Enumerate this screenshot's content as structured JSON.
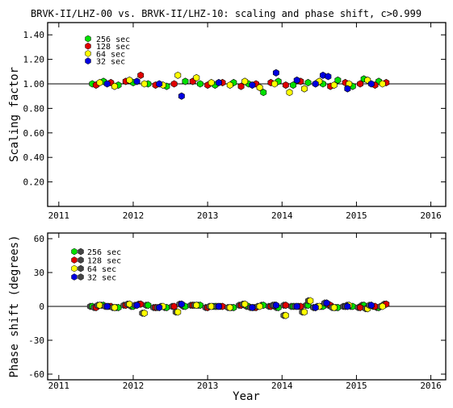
{
  "chart_data": [
    {
      "type": "scatter",
      "title": "BRVK-II/LHZ-00 vs. BRVK-II/LHZ-10: scaling and phase shift, c>0.999",
      "xlabel": "",
      "ylabel": "Scaling factor",
      "xlim": [
        2010.85,
        2016.2
      ],
      "ylim": [
        0.0,
        1.5
      ],
      "x_ticks": [
        "2011",
        "2012",
        "2013",
        "2014",
        "2015",
        "2016"
      ],
      "y_ticks": [
        "0.20",
        "0.40",
        "0.60",
        "0.80",
        "1.00",
        "1.20",
        "1.40"
      ],
      "reference_line": 1.0,
      "legend_position": "top-left",
      "series": [
        {
          "name": "256 sec",
          "color": "#00e000",
          "x": [
            2011.45,
            2011.6,
            2011.8,
            2012.0,
            2012.2,
            2012.45,
            2012.7,
            2012.9,
            2013.1,
            2013.35,
            2013.55,
            2013.75,
            2013.95,
            2014.15,
            2014.35,
            2014.55,
            2014.75,
            2014.95,
            2015.1,
            2015.3
          ],
          "y": [
            1.0,
            1.02,
            0.99,
            1.01,
            1.0,
            0.98,
            1.02,
            1.0,
            0.99,
            1.01,
            1.0,
            0.93,
            1.02,
            0.99,
            1.01,
            1.0,
            1.03,
            0.98,
            1.04,
            1.02
          ]
        },
        {
          "name": "128 sec",
          "color": "#e00000",
          "x": [
            2011.5,
            2011.7,
            2011.9,
            2012.1,
            2012.3,
            2012.55,
            2012.8,
            2013.0,
            2013.2,
            2013.45,
            2013.65,
            2013.85,
            2014.05,
            2014.25,
            2014.45,
            2014.65,
            2014.85,
            2015.05,
            2015.25,
            2015.4
          ],
          "y": [
            0.99,
            1.01,
            1.02,
            1.07,
            0.99,
            1.0,
            1.02,
            0.99,
            1.01,
            0.98,
            1.0,
            1.01,
            0.99,
            1.02,
            1.0,
            0.98,
            1.01,
            1.0,
            0.99,
            1.01
          ]
        },
        {
          "name": "64 sec",
          "color": "#ffff00",
          "x": [
            2011.55,
            2011.75,
            2011.95,
            2012.15,
            2012.4,
            2012.6,
            2012.85,
            2013.05,
            2013.3,
            2013.5,
            2013.7,
            2013.9,
            2014.1,
            2014.3,
            2014.5,
            2014.7,
            2014.9,
            2015.15,
            2015.35
          ],
          "y": [
            1.01,
            0.98,
            1.03,
            1.0,
            0.99,
            1.07,
            1.05,
            1.01,
            0.99,
            1.02,
            0.97,
            1.0,
            0.93,
            0.96,
            1.02,
            0.99,
            1.0,
            1.03,
            1.0
          ]
        },
        {
          "name": "32 sec",
          "color": "#0000e0",
          "x": [
            2011.65,
            2012.05,
            2012.35,
            2012.65,
            2013.15,
            2013.6,
            2013.92,
            2014.2,
            2014.45,
            2014.55,
            2014.62,
            2014.88,
            2015.2
          ],
          "y": [
            1.0,
            1.02,
            1.0,
            0.9,
            1.01,
            0.99,
            1.09,
            1.03,
            1.0,
            1.07,
            1.06,
            0.96,
            1.0
          ]
        }
      ]
    },
    {
      "type": "scatter",
      "xlabel": "Year",
      "ylabel": "Phase shift (degrees)",
      "xlim": [
        2010.85,
        2016.2
      ],
      "ylim": [
        -65,
        65
      ],
      "x_ticks": [
        "2011",
        "2012",
        "2013",
        "2014",
        "2015",
        "2016"
      ],
      "y_ticks": [
        "60",
        "30",
        "0",
        "-30",
        "-60"
      ],
      "reference_line": 0,
      "legend_position": "top-left",
      "series": [
        {
          "name": "256 sec",
          "color": "#00e000",
          "x": [
            2011.45,
            2011.6,
            2011.8,
            2012.0,
            2012.2,
            2012.45,
            2012.7,
            2012.9,
            2013.1,
            2013.35,
            2013.55,
            2013.75,
            2013.95,
            2014.15,
            2014.35,
            2014.55,
            2014.75,
            2014.95,
            2015.1,
            2015.3
          ],
          "y": [
            0,
            1,
            -1,
            0,
            1,
            -1,
            0,
            1,
            0,
            -1,
            0,
            1,
            -1,
            0,
            1,
            0,
            -1,
            0,
            1,
            -1
          ]
        },
        {
          "name": "128 sec",
          "color": "#e00000",
          "x": [
            2011.5,
            2011.7,
            2011.9,
            2012.1,
            2012.3,
            2012.55,
            2012.8,
            2013.0,
            2013.2,
            2013.45,
            2013.65,
            2013.85,
            2014.05,
            2014.25,
            2014.45,
            2014.65,
            2014.85,
            2015.05,
            2015.25,
            2015.4
          ],
          "y": [
            -1,
            0,
            1,
            2,
            -1,
            0,
            1,
            -1,
            0,
            1,
            -1,
            0,
            1,
            0,
            -1,
            1,
            0,
            -1,
            0,
            2
          ]
        },
        {
          "name": "64 sec",
          "color": "#ffff00",
          "x": [
            2011.55,
            2011.75,
            2011.95,
            2012.15,
            2012.4,
            2012.6,
            2012.85,
            2013.05,
            2013.3,
            2013.5,
            2013.7,
            2013.9,
            2014.05,
            2014.3,
            2014.38,
            2014.5,
            2014.7,
            2014.9,
            2015.15,
            2015.35
          ],
          "y": [
            1,
            -1,
            2,
            -6,
            0,
            -5,
            1,
            0,
            -1,
            2,
            0,
            1,
            -8,
            -5,
            5,
            0,
            -1,
            1,
            -2,
            0
          ]
        },
        {
          "name": "32 sec",
          "color": "#0000e0",
          "x": [
            2011.65,
            2012.05,
            2012.35,
            2012.65,
            2013.15,
            2013.6,
            2013.92,
            2014.2,
            2014.45,
            2014.6,
            2014.88,
            2015.2
          ],
          "y": [
            0,
            1,
            -1,
            2,
            0,
            -1,
            1,
            0,
            -1,
            3,
            0,
            1
          ]
        }
      ]
    }
  ]
}
